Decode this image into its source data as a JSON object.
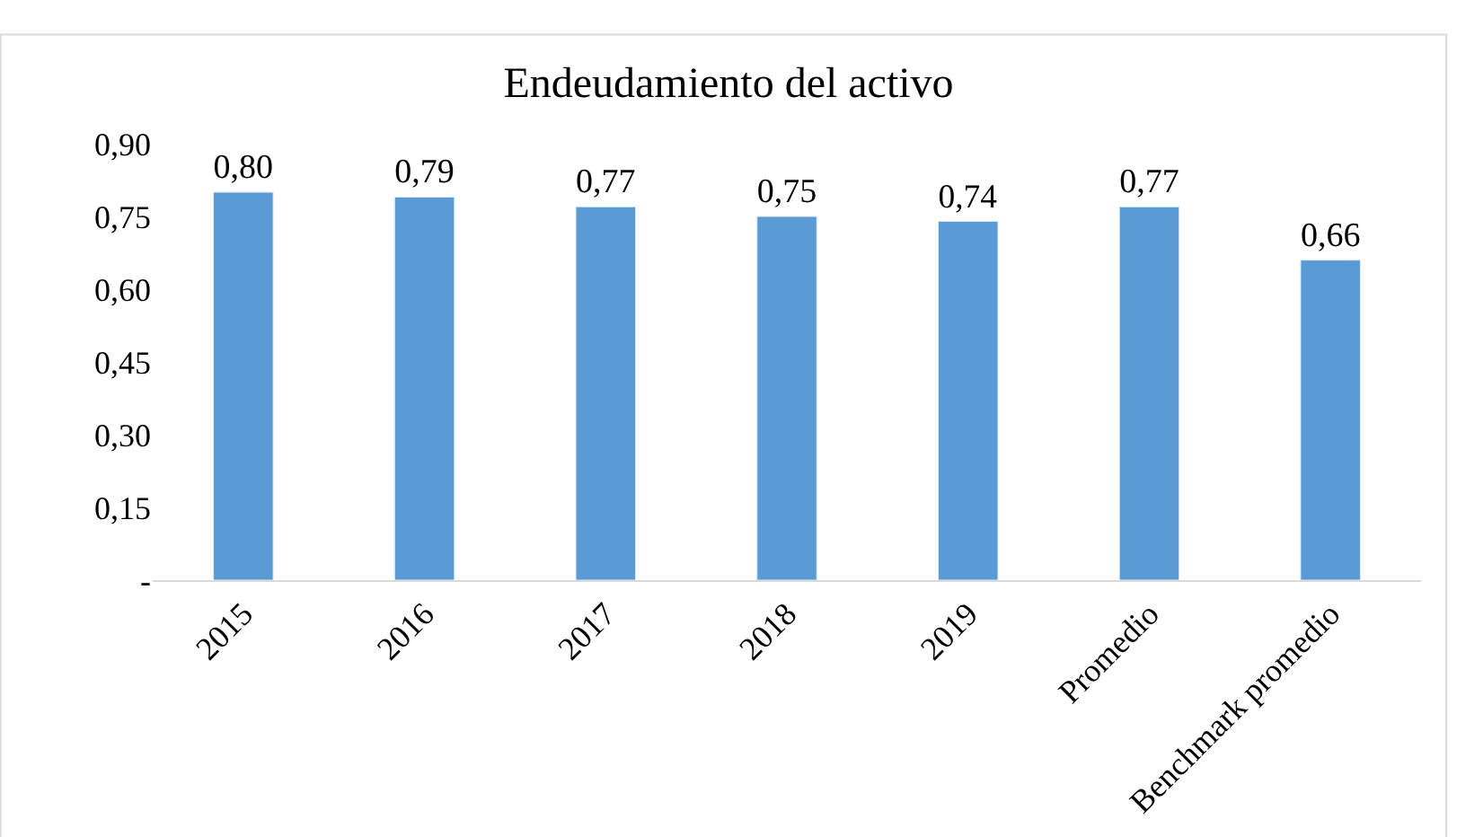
{
  "chart_data": {
    "type": "bar",
    "title": "Endeudamiento del activo",
    "categories": [
      "2015",
      "2016",
      "2017",
      "2018",
      "2019",
      "Promedio",
      "Benchmark promedio"
    ],
    "values": [
      0.8,
      0.79,
      0.77,
      0.75,
      0.74,
      0.77,
      0.66
    ],
    "value_labels": [
      "0,80",
      "0,79",
      "0,77",
      "0,75",
      "0,74",
      "0,77",
      "0,66"
    ],
    "color": "#5b9bd5",
    "ylim": [
      0,
      0.9
    ],
    "yticks": [
      {
        "value": 0,
        "label": "-"
      },
      {
        "value": 0.15,
        "label": "0,15"
      },
      {
        "value": 0.3,
        "label": "0,30"
      },
      {
        "value": 0.45,
        "label": "0,45"
      },
      {
        "value": 0.6,
        "label": "0,60"
      },
      {
        "value": 0.75,
        "label": "0,75"
      },
      {
        "value": 0.9,
        "label": "0,90"
      }
    ],
    "legend": false
  }
}
